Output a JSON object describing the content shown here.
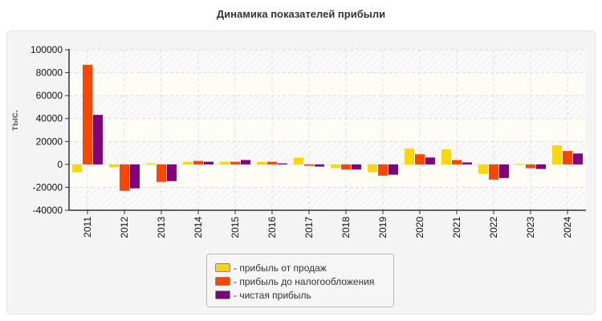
{
  "chart_data": {
    "type": "bar",
    "title": "Динамика показателей прибыли",
    "ylabel": "тыс.",
    "xlabel": "",
    "ylim": [
      -40000,
      100000
    ],
    "yticks": [
      "100000",
      "80000",
      "60000",
      "40000",
      "20000",
      "0",
      "-20000",
      "-40000"
    ],
    "grid": true,
    "legend_position": "bottom",
    "categories": [
      "2011",
      "2012",
      "2013",
      "2014",
      "2015",
      "2016",
      "2017",
      "2018",
      "2019",
      "2020",
      "2021",
      "2022",
      "2023",
      "2024"
    ],
    "series": [
      {
        "name": "- прибыль от продаж",
        "color": "#ffd700",
        "values": [
          -6800,
          -2600,
          900,
          2300,
          2300,
          2300,
          5900,
          -3300,
          -6900,
          13800,
          13100,
          -8300,
          300,
          16700
        ]
      },
      {
        "name": "- прибыль до налогообложения",
        "color": "#ff4500",
        "values": [
          86900,
          -23000,
          -15300,
          3000,
          2300,
          2300,
          -1200,
          -4500,
          -9800,
          8800,
          3800,
          -13300,
          -3300,
          11700
        ]
      },
      {
        "name": "- чистая прибыль",
        "color": "#800080",
        "values": [
          43200,
          -20900,
          -14600,
          2300,
          3800,
          900,
          -1900,
          -4500,
          -9000,
          6000,
          1700,
          -11900,
          -4000,
          9500
        ]
      }
    ]
  }
}
